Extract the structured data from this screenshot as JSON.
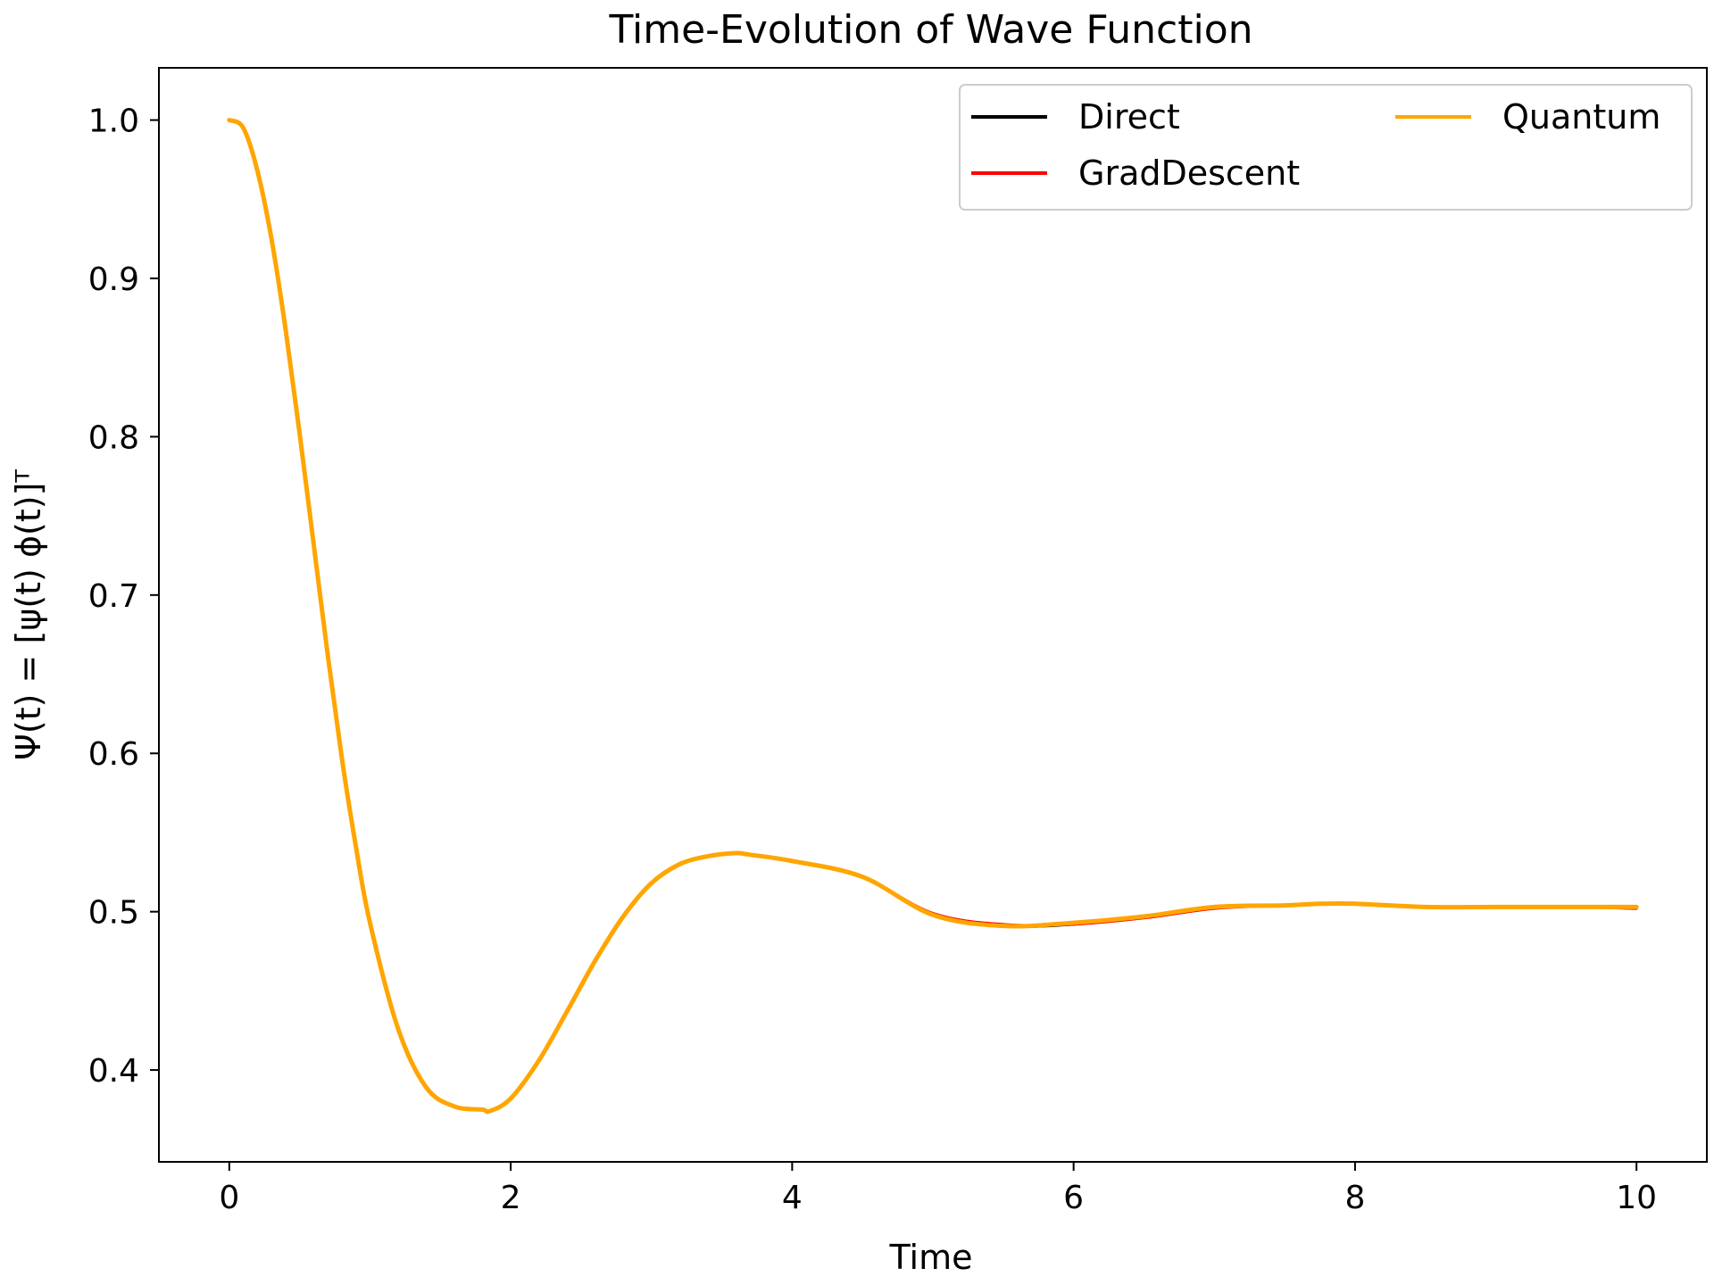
{
  "chart_data": {
    "type": "line",
    "title": "Time-Evolution of Wave Function",
    "xlabel": "Time",
    "ylabel": "Ψ(t) = [ψ(t)    ϕ(t)]ᵀ",
    "xlim": [
      -0.5,
      10.5
    ],
    "ylim": [
      0.342,
      1.033
    ],
    "xticks": [
      0,
      2,
      4,
      6,
      8,
      10
    ],
    "yticks": [
      0.4,
      0.5,
      0.6,
      0.7,
      0.8,
      0.9,
      1.0
    ],
    "xtick_labels": [
      "0",
      "2",
      "4",
      "6",
      "8",
      "10"
    ],
    "ytick_labels": [
      "0.4",
      "0.5",
      "0.6",
      "0.7",
      "0.8",
      "0.9",
      "1.0"
    ],
    "grid": false,
    "legend": {
      "placement": "top-right",
      "columns": 2
    },
    "x": [
      0,
      0.1,
      0.2,
      0.3,
      0.4,
      0.5,
      0.6,
      0.7,
      0.8,
      0.9,
      1.0,
      1.2,
      1.4,
      1.6,
      1.8,
      1.85,
      2.0,
      2.2,
      2.4,
      2.6,
      2.8,
      3.0,
      3.2,
      3.4,
      3.6,
      3.7,
      4.0,
      4.5,
      5.0,
      5.5,
      6.0,
      6.5,
      7.0,
      7.5,
      7.75,
      8.0,
      8.5,
      9.0,
      9.5,
      10.0
    ],
    "series": [
      {
        "name": "Direct",
        "color": "#000000",
        "values": [
          1.0,
          0.995,
          0.968,
          0.925,
          0.868,
          0.802,
          0.732,
          0.662,
          0.597,
          0.541,
          0.493,
          0.426,
          0.389,
          0.377,
          0.375,
          0.374,
          0.382,
          0.406,
          0.437,
          0.469,
          0.497,
          0.518,
          0.53,
          0.535,
          0.537,
          0.536,
          0.532,
          0.522,
          0.498,
          0.491,
          0.492,
          0.497,
          0.503,
          0.504,
          0.505,
          0.505,
          0.503,
          0.503,
          0.503,
          0.503
        ]
      },
      {
        "name": "GradDescent",
        "color": "#ff0000",
        "values": [
          1.0,
          0.995,
          0.968,
          0.925,
          0.868,
          0.802,
          0.732,
          0.662,
          0.597,
          0.541,
          0.493,
          0.426,
          0.389,
          0.377,
          0.375,
          0.374,
          0.382,
          0.406,
          0.437,
          0.469,
          0.497,
          0.518,
          0.53,
          0.535,
          0.537,
          0.536,
          0.532,
          0.522,
          0.499,
          0.492,
          0.492,
          0.496,
          0.502,
          0.504,
          0.505,
          0.505,
          0.503,
          0.503,
          0.503,
          0.502
        ]
      },
      {
        "name": "Quantum",
        "color": "#ffa500",
        "values": [
          1.0,
          0.995,
          0.968,
          0.925,
          0.868,
          0.802,
          0.732,
          0.662,
          0.597,
          0.541,
          0.493,
          0.426,
          0.389,
          0.377,
          0.375,
          0.374,
          0.382,
          0.406,
          0.437,
          0.469,
          0.497,
          0.518,
          0.53,
          0.535,
          0.537,
          0.536,
          0.532,
          0.522,
          0.498,
          0.491,
          0.493,
          0.497,
          0.503,
          0.504,
          0.505,
          0.505,
          0.503,
          0.503,
          0.503,
          0.503
        ]
      }
    ]
  }
}
